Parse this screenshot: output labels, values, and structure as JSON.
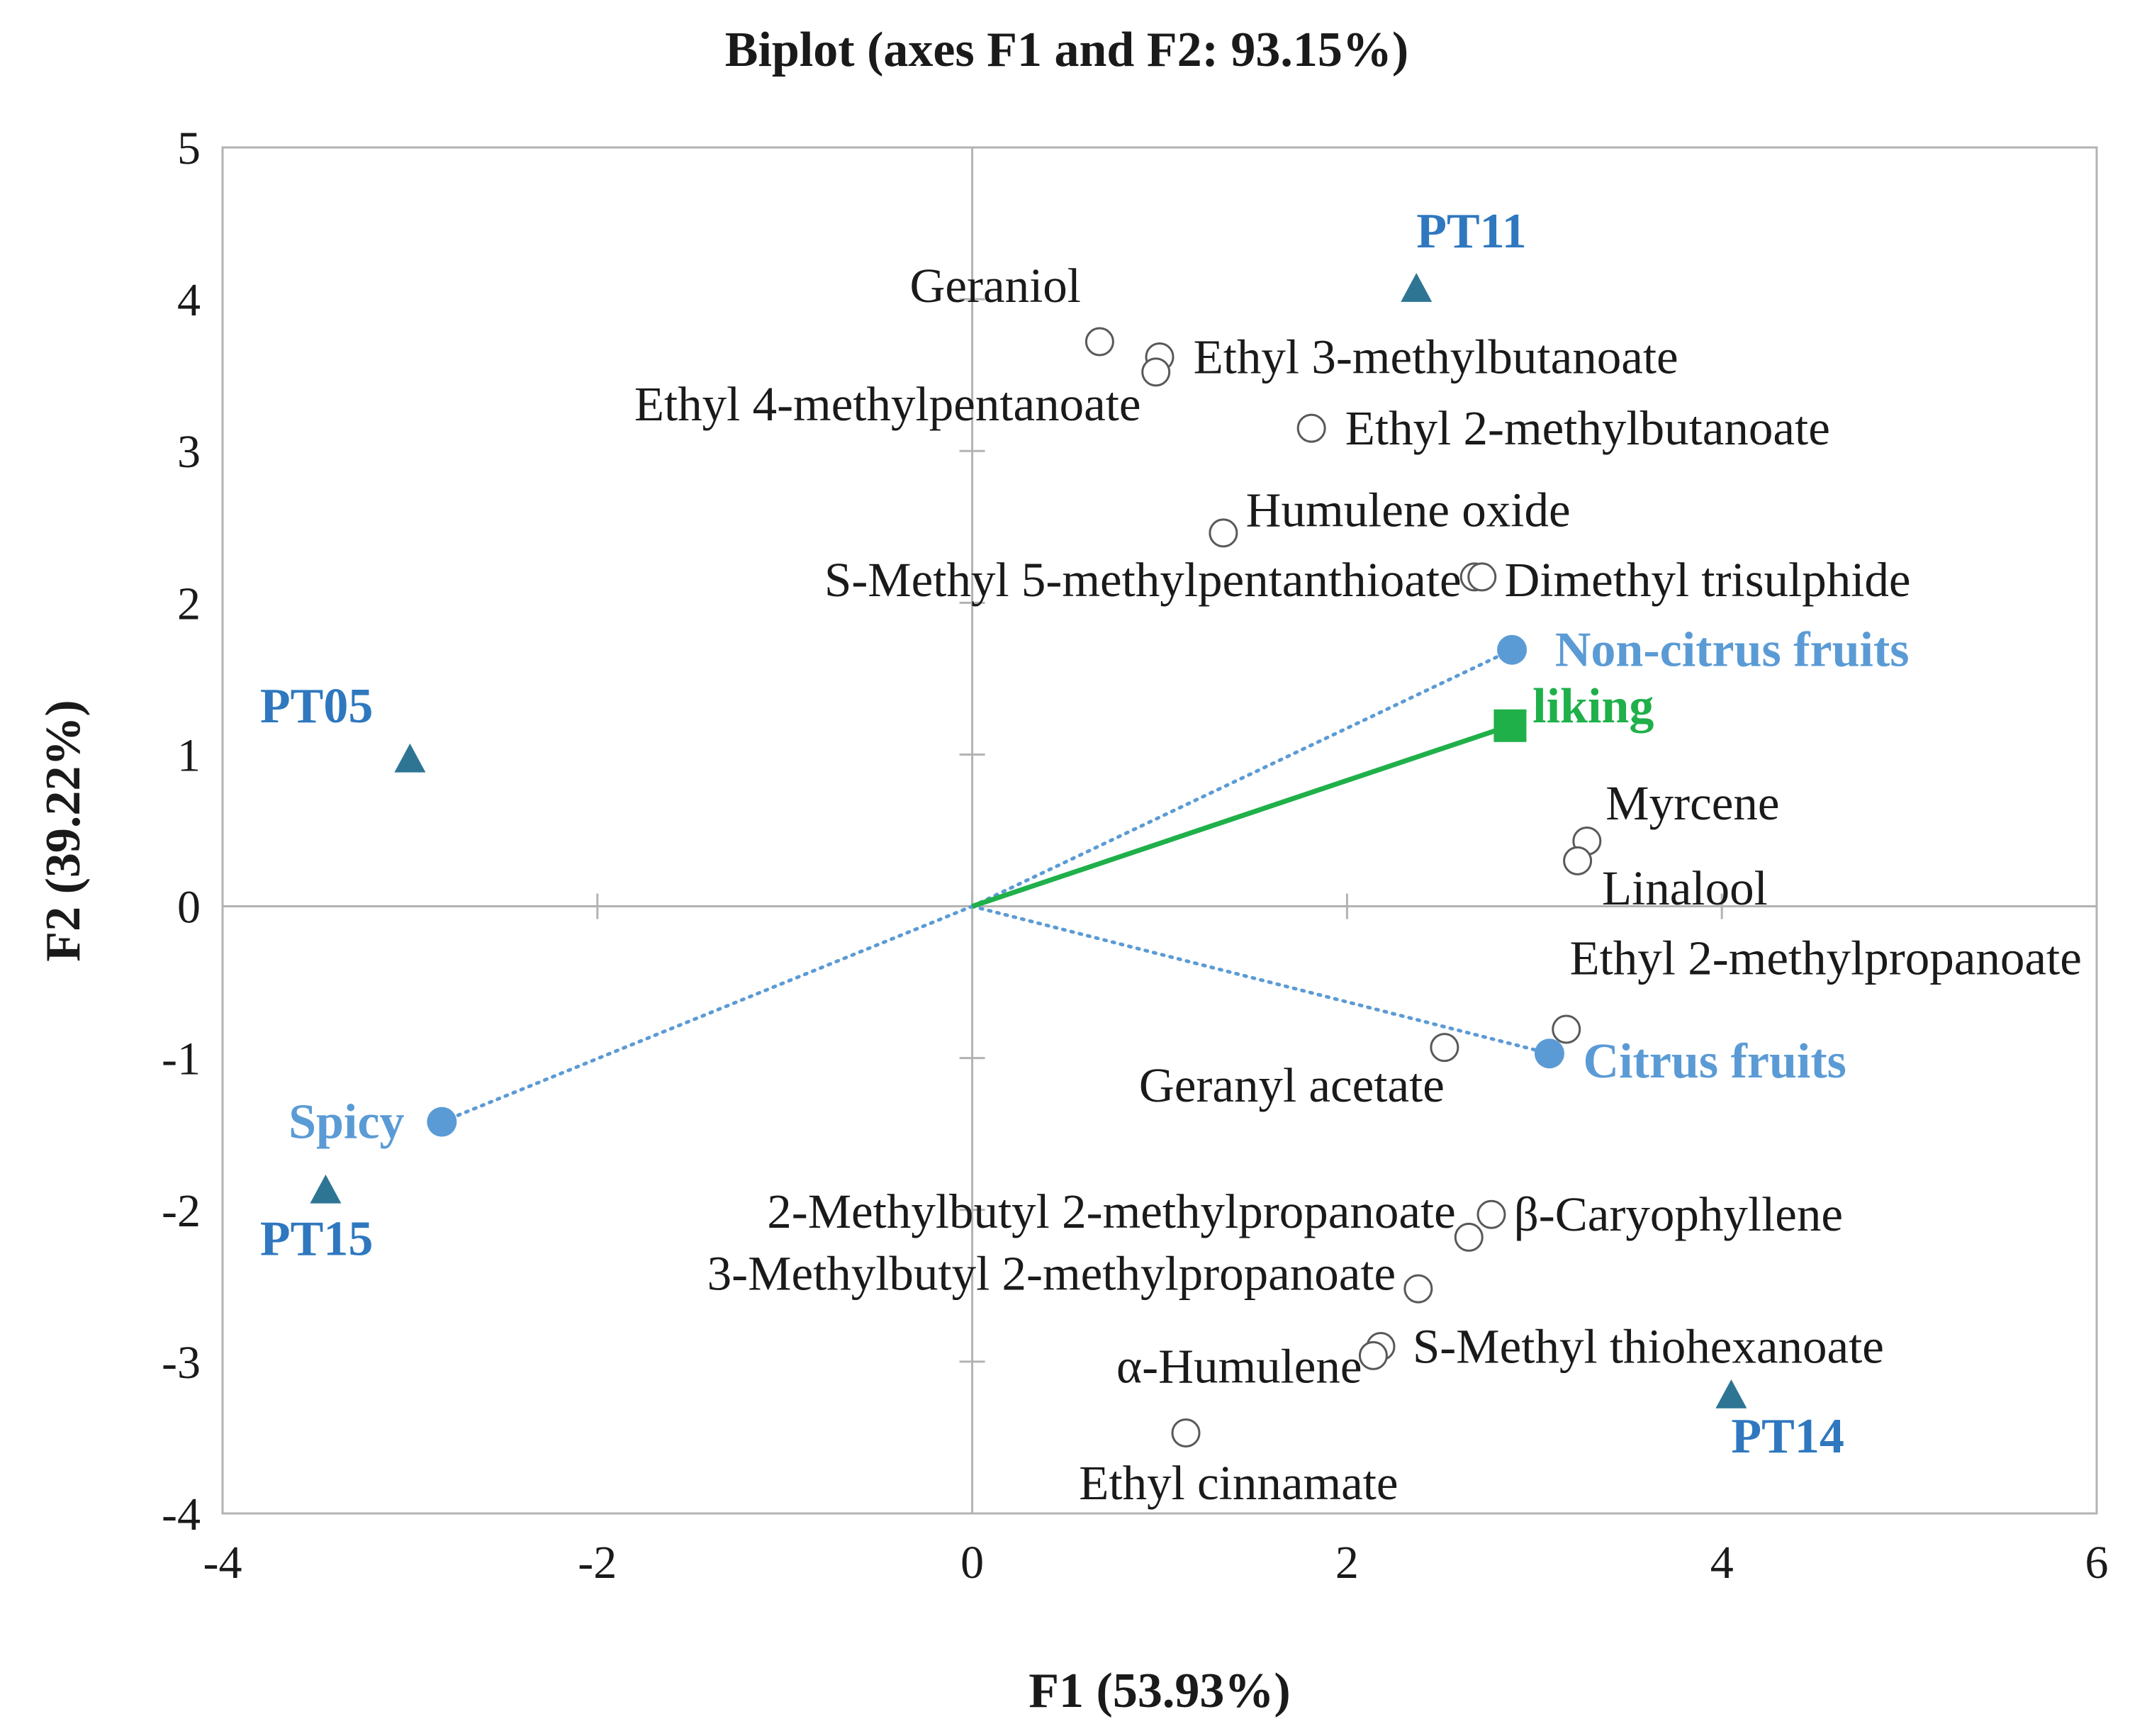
{
  "chart_data": {
    "type": "scatter",
    "title": "Biplot (axes F1 and F2: 93.15%)",
    "xlabel": "F1 (53.93%)",
    "ylabel": "F2 (39.22%)",
    "xlim": [
      -4,
      6
    ],
    "ylim": [
      -4,
      5
    ],
    "xticks": [
      "-4",
      "-2",
      "0",
      "2",
      "4",
      "6"
    ],
    "xtick_values": [
      -4,
      -2,
      0,
      2,
      4,
      6
    ],
    "yticks": [
      "5",
      "4",
      "3",
      "2",
      "1",
      "0",
      "-1",
      "-2",
      "-3",
      "-4"
    ],
    "ytick_values": [
      5,
      4,
      3,
      2,
      1,
      0,
      -1,
      -2,
      -3,
      -4
    ],
    "grid": false,
    "colors": {
      "variables": "#595959",
      "observations_marker": "#2e7594",
      "observations_label": "#2f78bf",
      "supplementary": "#5b9bd5",
      "liking": "#1fb04a",
      "axes": "#b3b3b3",
      "text": "#1a1a1a"
    },
    "variables": [
      {
        "name": "Geraniol",
        "x": 0.68,
        "y": 3.72,
        "anchor": "end",
        "dx": -0.1,
        "dy": 0.37
      },
      {
        "name": "Ethyl 3-methylbutanoate",
        "x": 1.0,
        "y": 3.62,
        "anchor": "start",
        "dx": 0.18,
        "dy": 0.0
      },
      {
        "name": "Ethyl 4-methylpentanoate",
        "x": 0.98,
        "y": 3.52,
        "anchor": "end",
        "dx": -0.08,
        "dy": -0.21
      },
      {
        "name": "Ethyl 2-methylbutanoate",
        "x": 1.81,
        "y": 3.15,
        "anchor": "start",
        "dx": 0.18,
        "dy": 0.0
      },
      {
        "name": "Humulene oxide",
        "x": 1.34,
        "y": 2.46,
        "anchor": "start",
        "dx": 0.12,
        "dy": 0.15
      },
      {
        "name": "S-Methyl 5-methylpentanthioate",
        "x": 2.68,
        "y": 2.17,
        "anchor": "end",
        "dx": -0.07,
        "dy": -0.02
      },
      {
        "name": "Dimethyl trisulphide",
        "x": 2.72,
        "y": 2.17,
        "anchor": "start",
        "dx": 0.12,
        "dy": -0.02
      },
      {
        "name": "Myrcene",
        "x": 3.28,
        "y": 0.43,
        "anchor": "start",
        "dx": 0.1,
        "dy": 0.25
      },
      {
        "name": "Linalool",
        "x": 3.23,
        "y": 0.3,
        "anchor": "start",
        "dx": 0.13,
        "dy": -0.18
      },
      {
        "name": "Ethyl 2-methylpropanoate",
        "x": 3.17,
        "y": -0.81,
        "anchor": "end",
        "dx": 2.75,
        "dy": 0.47
      },
      {
        "name": "Geranyl acetate",
        "x": 2.52,
        "y": -0.93,
        "anchor": "end",
        "dx": 0.0,
        "dy": -0.25
      },
      {
        "name": "β-Caryophyllene",
        "x": 2.77,
        "y": -2.03,
        "anchor": "start",
        "dx": 0.12,
        "dy": 0.0
      },
      {
        "name": "2-Methylbutyl 2-methylpropanoate",
        "x": 2.65,
        "y": -2.18,
        "anchor": "end",
        "dx": -0.07,
        "dy": 0.17
      },
      {
        "name": "3-Methylbutyl 2-methylpropanoate",
        "x": 2.38,
        "y": -2.52,
        "anchor": "end",
        "dx": -0.12,
        "dy": 0.1
      },
      {
        "name": "S-Methyl thiohexanoate",
        "x": 2.18,
        "y": -2.9,
        "anchor": "start",
        "dx": 0.17,
        "dy": 0.0
      },
      {
        "name": "α-Humulene",
        "x": 2.14,
        "y": -2.96,
        "anchor": "end",
        "dx": -0.06,
        "dy": -0.07
      },
      {
        "name": "Ethyl cinnamate",
        "x": 1.14,
        "y": -3.47,
        "anchor": "start",
        "dx": -0.57,
        "dy": -0.33
      }
    ],
    "observations": [
      {
        "name": "PT11",
        "x": 2.37,
        "y": 4.07,
        "anchor": "start",
        "dx": 0.0,
        "dy": 0.38
      },
      {
        "name": "PT05",
        "x": -3.0,
        "y": 0.97,
        "anchor": "start",
        "dx": -0.8,
        "dy": 0.35
      },
      {
        "name": "PT15",
        "x": -3.45,
        "y": -1.87,
        "anchor": "start",
        "dx": -0.35,
        "dy": -0.32
      },
      {
        "name": "PT14",
        "x": 4.05,
        "y": -3.22,
        "anchor": "start",
        "dx": 0.0,
        "dy": -0.27
      }
    ],
    "supplementary": [
      {
        "name": "Non-citrus fruits",
        "x": 2.88,
        "y": 1.69,
        "anchor": "start",
        "dx": 0.23,
        "dy": 0.0
      },
      {
        "name": "Citrus fruits",
        "x": 3.08,
        "y": -0.97,
        "anchor": "start",
        "dx": 0.18,
        "dy": -0.05
      },
      {
        "name": "Spicy",
        "x": -2.83,
        "y": -1.42,
        "anchor": "end",
        "dx": -0.2,
        "dy": 0.0
      }
    ],
    "liking": {
      "name": "liking",
      "x": 2.87,
      "y": 1.19,
      "anchor": "start",
      "dx": 0.12,
      "dy": 0.13
    }
  }
}
